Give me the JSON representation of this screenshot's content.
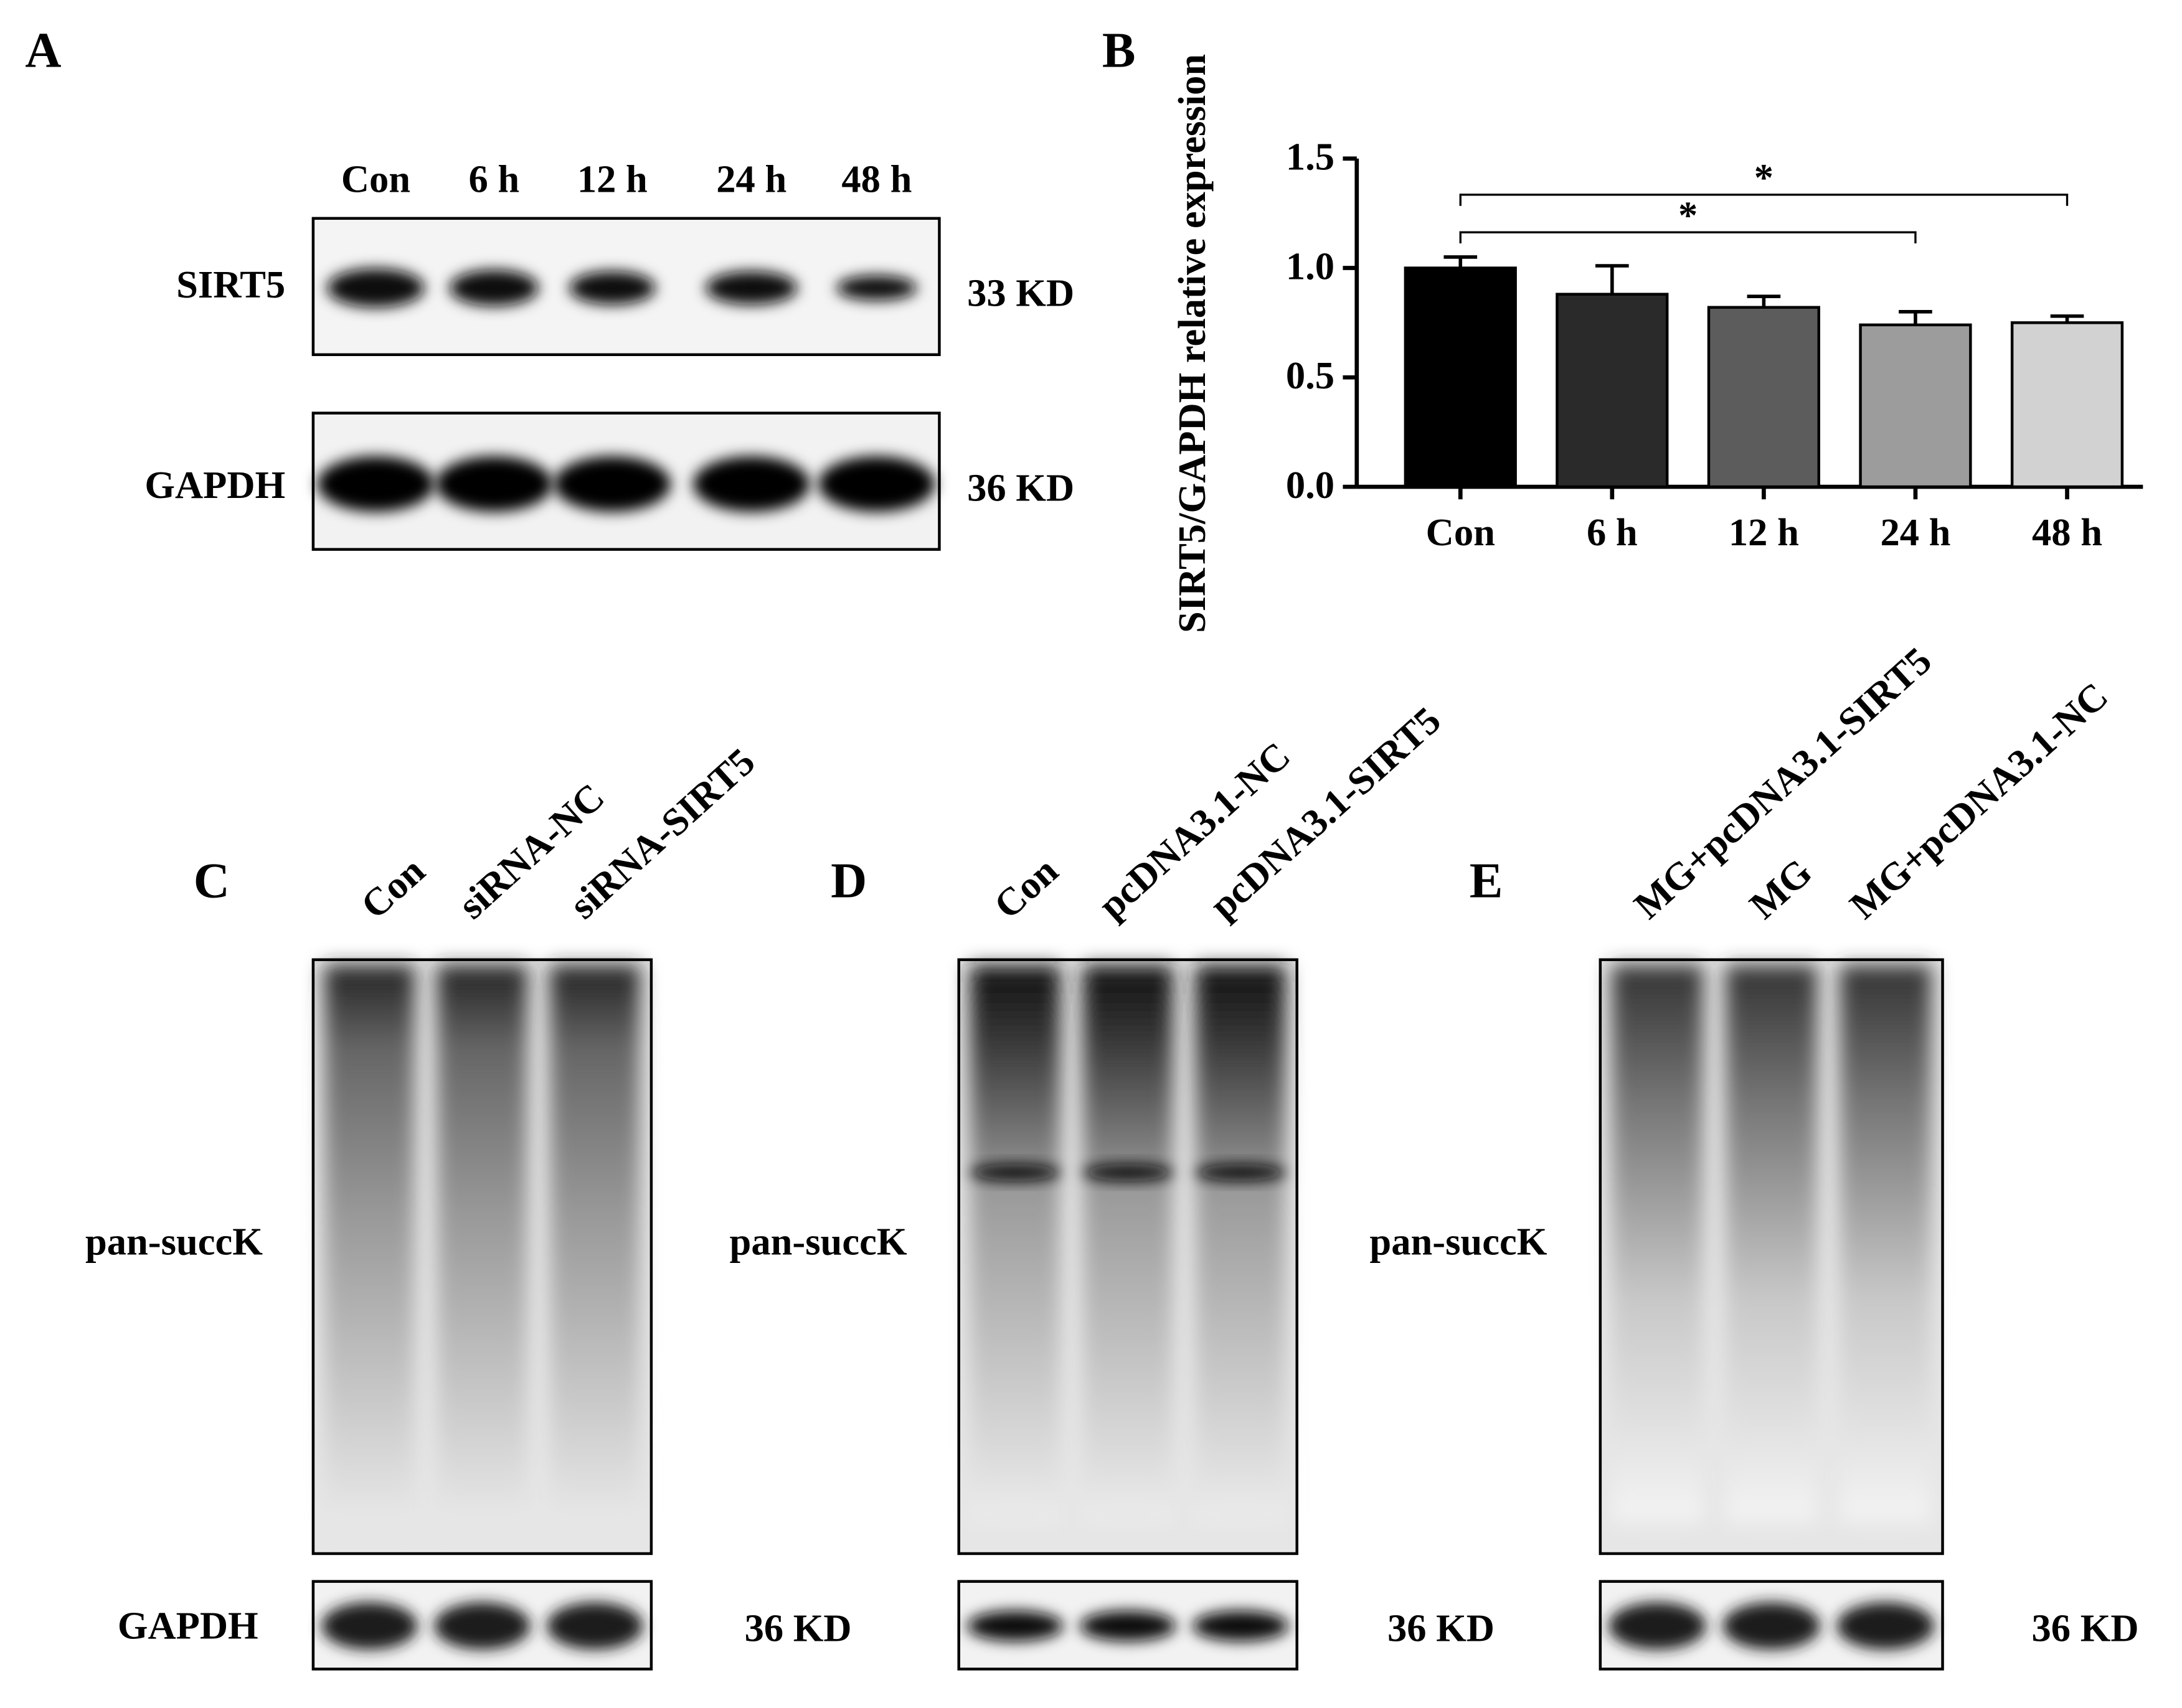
{
  "panel_a": {
    "label": "A",
    "lanes": [
      "Con",
      "6 h",
      "12 h",
      "24 h",
      "48 h"
    ],
    "bands": [
      {
        "name": "SIRT5",
        "size": "33 KD"
      },
      {
        "name": "GAPDH",
        "size": "36 KD"
      }
    ]
  },
  "chart_data": {
    "type": "bar",
    "panel_label": "B",
    "ylabel": "SIRT5/GAPDH relative expression",
    "categories": [
      "Con",
      "6 h",
      "12 h",
      "24 h",
      "48 h"
    ],
    "values": [
      1.0,
      0.88,
      0.82,
      0.74,
      0.75
    ],
    "errors": [
      0.05,
      0.13,
      0.05,
      0.06,
      0.03
    ],
    "colors": [
      "#000000",
      "#2a2a2a",
      "#5c5c5c",
      "#9c9c9c",
      "#d2d2d2"
    ],
    "ylim": [
      0,
      1.5
    ],
    "yticks": [
      {
        "value": 0,
        "label": "0.0"
      },
      0.5,
      {
        "value": 1,
        "label": "1.0"
      },
      1.5
    ],
    "significance": [
      {
        "label": "*",
        "between": [
          "Con",
          "24 h"
        ]
      },
      {
        "label": "*",
        "between": [
          "Con",
          "48 h"
        ]
      }
    ]
  },
  "panel_c": {
    "label": "C",
    "lanes": [
      "Con",
      "siRNA-NC",
      "siRNA-SIRT5"
    ],
    "blot": "pan-succK",
    "loading": "GAPDH",
    "size": "36 KD"
  },
  "panel_d": {
    "label": "D",
    "lanes": [
      "Con",
      "pcDNA3.1-NC",
      "pcDNA3.1-SIRT5"
    ],
    "blot": "pan-succK",
    "size": "36 KD"
  },
  "panel_e": {
    "label": "E",
    "lanes": [
      "MG+pcDNA3.1-SIRT5",
      "MG",
      "MG+pcDNA3.1-NC"
    ],
    "blot": "pan-succK",
    "size": "36 KD"
  }
}
